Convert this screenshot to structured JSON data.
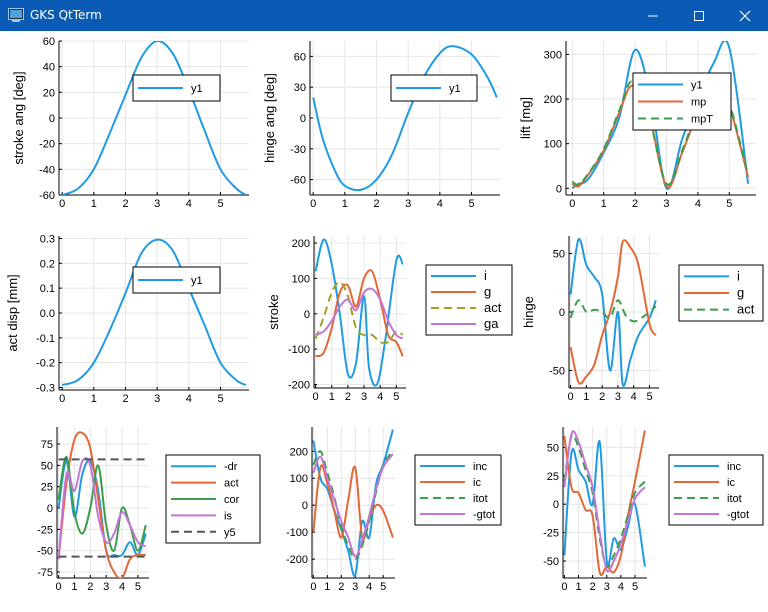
{
  "window": {
    "title": "GKS QtTerm"
  },
  "chart_data": [
    {
      "type": "line",
      "id": "stroke",
      "ylabel": "stroke ang [deg]",
      "xlim": [
        -0.1,
        5.9
      ],
      "ylim": [
        -60,
        60
      ],
      "xticks": [
        0,
        1,
        2,
        3,
        4,
        5
      ],
      "yticks": [
        -60,
        -40,
        -20,
        0,
        20,
        40,
        60
      ],
      "legend": {
        "placement": "inside-top-right"
      },
      "series": [
        {
          "name": "y1",
          "color": "#1f9be3",
          "dash": "solid",
          "x": [
            0,
            0.5,
            1,
            1.5,
            2,
            2.5,
            3,
            3.5,
            4,
            4.5,
            5,
            5.5,
            5.8
          ],
          "y": [
            -60,
            -55,
            -40,
            -12,
            18,
            47,
            60,
            50,
            22,
            -10,
            -40,
            -55,
            -60
          ]
        }
      ]
    },
    {
      "type": "line",
      "id": "hinge",
      "ylabel": "hinge ang [deg]",
      "xlim": [
        -0.1,
        5.9
      ],
      "ylim": [
        -75,
        75
      ],
      "xticks": [
        0,
        1,
        2,
        3,
        4,
        5
      ],
      "yticks": [
        -60,
        -30,
        0,
        30,
        60
      ],
      "legend": {
        "placement": "inside-top-right"
      },
      "series": [
        {
          "name": "y1",
          "color": "#1f9be3",
          "dash": "solid",
          "x": [
            0,
            0.3,
            0.7,
            1,
            1.5,
            2,
            2.5,
            3,
            3.5,
            4,
            4.4,
            5,
            5.5,
            5.8
          ],
          "y": [
            20,
            -20,
            -52,
            -66,
            -70,
            -60,
            -35,
            5,
            40,
            63,
            70,
            62,
            40,
            20
          ]
        }
      ]
    },
    {
      "type": "line",
      "id": "lift",
      "ylabel": "lift [mg]",
      "xlim": [
        -0.2,
        5.85
      ],
      "ylim": [
        -15,
        330
      ],
      "xticks": [
        0,
        1,
        2,
        3,
        4,
        5
      ],
      "yticks": [
        0,
        100,
        200,
        300
      ],
      "legend": {
        "placement": "inside-top-right"
      },
      "series": [
        {
          "name": "y1",
          "color": "#1f9be3",
          "dash": "solid",
          "x": [
            0,
            0.2,
            0.5,
            1,
            1.5,
            2,
            2.5,
            3,
            3.5,
            4,
            4.5,
            5,
            5.6
          ],
          "y": [
            0,
            10,
            20,
            80,
            160,
            310,
            200,
            0,
            110,
            200,
            280,
            315,
            10
          ]
        },
        {
          "name": "mp",
          "color": "#e26838",
          "dash": "solid",
          "x": [
            0,
            0.2,
            0.5,
            1,
            1.5,
            1.9,
            2.4,
            3,
            3.5,
            4,
            4.5,
            4.9,
            5.6
          ],
          "y": [
            10,
            5,
            30,
            85,
            170,
            230,
            180,
            5,
            80,
            170,
            230,
            210,
            25
          ]
        },
        {
          "name": "mpT",
          "color": "#3a9e4a",
          "dash": "dash",
          "x": [
            0,
            0.2,
            0.5,
            1,
            1.5,
            1.9,
            2.4,
            3,
            3.5,
            4,
            4.5,
            4.9,
            5.6
          ],
          "y": [
            15,
            8,
            32,
            88,
            175,
            240,
            175,
            10,
            85,
            175,
            235,
            215,
            30
          ]
        }
      ]
    },
    {
      "type": "line",
      "id": "actdisp",
      "ylabel": "act disp [mm]",
      "xlim": [
        -0.1,
        5.9
      ],
      "ylim": [
        -0.31,
        0.31
      ],
      "xticks": [
        0,
        1,
        2,
        3,
        4,
        5
      ],
      "yticks": [
        -0.3,
        -0.2,
        -0.1,
        0.0,
        0.1,
        0.2,
        0.3
      ],
      "legend": {
        "placement": "inside-top-right"
      },
      "series": [
        {
          "name": "y1",
          "color": "#1f9be3",
          "dash": "solid",
          "x": [
            0,
            0.5,
            1,
            1.5,
            2,
            2.5,
            3,
            3.5,
            4,
            4.5,
            5,
            5.5,
            5.8
          ],
          "y": [
            -0.29,
            -0.27,
            -0.2,
            -0.07,
            0.08,
            0.24,
            0.295,
            0.25,
            0.1,
            -0.05,
            -0.2,
            -0.27,
            -0.29
          ]
        }
      ]
    },
    {
      "type": "line",
      "id": "stroke2",
      "ylabel": "stroke",
      "xlim": [
        -0.1,
        5.6
      ],
      "ylim": [
        -210,
        220
      ],
      "xticks": [
        0,
        1,
        2,
        3,
        4,
        5
      ],
      "yticks": [
        -200,
        -100,
        0,
        100,
        200
      ],
      "legend": {
        "placement": "outside-right"
      },
      "series": [
        {
          "name": "i",
          "color": "#1f9be3",
          "dash": "solid",
          "x": [
            0,
            0.5,
            1,
            1.5,
            2,
            2.5,
            3,
            3.3,
            3.8,
            4.3,
            5,
            5.4
          ],
          "y": [
            120,
            210,
            140,
            0,
            -170,
            -140,
            50,
            -150,
            -200,
            -80,
            150,
            140
          ]
        },
        {
          "name": "g",
          "color": "#e26838",
          "dash": "solid",
          "x": [
            0,
            0.5,
            1,
            1.5,
            2,
            2.5,
            3,
            3.5,
            4,
            4.5,
            5,
            5.4
          ],
          "y": [
            -120,
            -110,
            -40,
            60,
            80,
            20,
            100,
            120,
            40,
            -60,
            -80,
            -120
          ]
        },
        {
          "name": "act",
          "color": "#a3a020",
          "dash": "dash",
          "x": [
            0,
            0.5,
            1,
            1.5,
            2,
            2.5,
            3,
            3.5,
            4,
            4.5,
            5,
            5.4
          ],
          "y": [
            -70,
            -10,
            60,
            90,
            50,
            -40,
            -60,
            -60,
            -80,
            -80,
            -50,
            -60
          ]
        },
        {
          "name": "ga",
          "color": "#c476d6",
          "dash": "solid",
          "x": [
            0,
            0.5,
            1,
            1.5,
            2,
            2.5,
            3,
            3.5,
            4,
            4.5,
            5,
            5.4
          ],
          "y": [
            -60,
            -50,
            -20,
            20,
            40,
            10,
            60,
            70,
            40,
            -20,
            -60,
            -70
          ]
        }
      ]
    },
    {
      "type": "line",
      "id": "hinge2",
      "ylabel": "hinge",
      "xlim": [
        -0.1,
        5.6
      ],
      "ylim": [
        -65,
        65
      ],
      "xticks": [
        0,
        1,
        2,
        3,
        4,
        5
      ],
      "yticks": [
        -50,
        0,
        50
      ],
      "legend": {
        "placement": "outside-right"
      },
      "series": [
        {
          "name": "i",
          "color": "#1f9be3",
          "dash": "solid",
          "x": [
            0,
            0.5,
            1,
            1.5,
            2,
            2.5,
            3,
            3.3,
            3.8,
            4.3,
            5,
            5.4
          ],
          "y": [
            15,
            62,
            40,
            30,
            15,
            -50,
            0,
            -62,
            -40,
            -20,
            -5,
            10
          ]
        },
        {
          "name": "g",
          "color": "#e26838",
          "dash": "solid",
          "x": [
            0,
            0.5,
            1,
            1.5,
            2,
            2.5,
            3,
            3.3,
            3.8,
            4.3,
            5,
            5.4
          ],
          "y": [
            -30,
            -60,
            -55,
            -45,
            -20,
            0,
            30,
            60,
            55,
            40,
            -10,
            -20
          ]
        },
        {
          "name": "act",
          "color": "#3a9e4a",
          "dash": "dash",
          "x": [
            0,
            0.5,
            1,
            1.5,
            2,
            2.5,
            3,
            3.5,
            4,
            4.5,
            5,
            5.4
          ],
          "y": [
            -5,
            10,
            0,
            2,
            0,
            -5,
            10,
            -3,
            -8,
            -5,
            0,
            5
          ]
        }
      ]
    },
    {
      "type": "line",
      "id": "forces",
      "xlim": [
        -0.1,
        5.7
      ],
      "ylim": [
        -82,
        95
      ],
      "xticks": [
        0,
        1,
        2,
        3,
        4,
        5
      ],
      "yticks": [
        -75,
        -50,
        -25,
        0,
        25,
        50,
        75
      ],
      "legend": {
        "placement": "outside-right"
      },
      "series": [
        {
          "name": "-dr",
          "color": "#1f9be3",
          "dash": "solid",
          "x": [
            0,
            0.5,
            1,
            1.5,
            2,
            2.5,
            3,
            3.5,
            4,
            4.5,
            5,
            5.5
          ],
          "y": [
            0,
            55,
            -10,
            40,
            55,
            20,
            -50,
            -55,
            -55,
            -40,
            -55,
            -30
          ]
        },
        {
          "name": "act",
          "color": "#e26838",
          "dash": "solid",
          "x": [
            0,
            0.5,
            1,
            1.5,
            2,
            2.5,
            3,
            3.5,
            4,
            4.5,
            5,
            5.5
          ],
          "y": [
            -60,
            30,
            80,
            88,
            70,
            10,
            -50,
            -75,
            -82,
            -60,
            -55,
            -55
          ]
        },
        {
          "name": "cor",
          "color": "#3a9e4a",
          "dash": "solid",
          "x": [
            0,
            0.5,
            1,
            1.5,
            2,
            2.5,
            3,
            3.5,
            4,
            4.5,
            5,
            5.5
          ],
          "y": [
            10,
            60,
            -5,
            -30,
            0,
            50,
            -20,
            -50,
            0,
            -20,
            -50,
            -20
          ]
        },
        {
          "name": "is",
          "color": "#c476d6",
          "dash": "solid",
          "x": [
            0,
            0.5,
            1,
            1.5,
            2,
            2.5,
            3,
            3.5,
            4,
            4.5,
            5,
            5.5
          ],
          "y": [
            -60,
            40,
            20,
            55,
            50,
            -10,
            -40,
            -30,
            -5,
            -20,
            -40,
            -45
          ]
        },
        {
          "name": "y5",
          "color": "#555555",
          "dash": "dash",
          "x": [
            0,
            5.7
          ],
          "y": [
            57,
            57
          ]
        },
        {
          "name": "",
          "color": "#555555",
          "dash": "dash",
          "x": [
            0,
            5.7
          ],
          "y": [
            -57,
            -57
          ]
        }
      ]
    },
    {
      "type": "line",
      "id": "totals",
      "xlim": [
        -0.1,
        5.85
      ],
      "ylim": [
        -270,
        290
      ],
      "xticks": [
        0,
        1,
        2,
        3,
        4,
        5
      ],
      "yticks": [
        -200,
        -100,
        0,
        100,
        200
      ],
      "legend": {
        "placement": "outside-right"
      },
      "series": [
        {
          "name": "inc",
          "color": "#1f9be3",
          "dash": "solid",
          "x": [
            0,
            0.5,
            1,
            1.5,
            2,
            2.5,
            3,
            3.5,
            4,
            4.5,
            5,
            5.7
          ],
          "y": [
            240,
            100,
            60,
            -20,
            -90,
            -170,
            -260,
            -60,
            -120,
            80,
            150,
            280
          ]
        },
        {
          "name": "ic",
          "color": "#e26838",
          "dash": "solid",
          "x": [
            0,
            0.5,
            1,
            1.5,
            2,
            2.5,
            3,
            3.5,
            4,
            4.5,
            5,
            5.7
          ],
          "y": [
            -100,
            140,
            80,
            -20,
            -120,
            20,
            140,
            -120,
            -50,
            0,
            -20,
            -120
          ]
        },
        {
          "name": "itot",
          "color": "#3a9e4a",
          "dash": "dash",
          "x": [
            0,
            0.5,
            1,
            1.5,
            2,
            2.5,
            3,
            3.5,
            4,
            4.5,
            5,
            5.7
          ],
          "y": [
            150,
            200,
            120,
            30,
            -80,
            -150,
            -200,
            -150,
            -60,
            50,
            150,
            200
          ]
        },
        {
          "name": "-gtot",
          "color": "#c476d6",
          "dash": "solid",
          "x": [
            0,
            0.5,
            1,
            1.5,
            2,
            2.5,
            3,
            3.5,
            4,
            4.5,
            5,
            5.7
          ],
          "y": [
            120,
            180,
            100,
            20,
            -60,
            -120,
            -190,
            -130,
            -40,
            60,
            140,
            190
          ]
        }
      ]
    },
    {
      "type": "line",
      "id": "totals2",
      "xlim": [
        -0.1,
        5.85
      ],
      "ylim": [
        -65,
        68
      ],
      "xticks": [
        0,
        1,
        2,
        3,
        4,
        5
      ],
      "yticks": [
        -50,
        -25,
        0,
        25,
        50
      ],
      "legend": {
        "placement": "outside-right"
      },
      "series": [
        {
          "name": "inc",
          "color": "#1f9be3",
          "dash": "solid",
          "x": [
            0,
            0.5,
            1,
            1.5,
            2,
            2.5,
            3,
            3.5,
            4,
            4.5,
            5,
            5.7
          ],
          "y": [
            -45,
            45,
            30,
            20,
            0,
            55,
            -50,
            -30,
            -40,
            -20,
            0,
            -55
          ]
        },
        {
          "name": "ic",
          "color": "#e26838",
          "dash": "solid",
          "x": [
            0,
            0.5,
            1,
            1.5,
            2,
            2.5,
            3,
            3.5,
            4,
            4.5,
            5,
            5.7
          ],
          "y": [
            60,
            15,
            10,
            -5,
            -10,
            -60,
            -55,
            -60,
            -45,
            -10,
            20,
            65
          ]
        },
        {
          "name": "itot",
          "color": "#3a9e4a",
          "dash": "dash",
          "x": [
            0,
            0.5,
            1,
            1.5,
            2,
            2.5,
            3,
            3.5,
            4,
            4.5,
            5,
            5.7
          ],
          "y": [
            20,
            60,
            50,
            30,
            10,
            -30,
            -55,
            -45,
            -30,
            -10,
            10,
            20
          ]
        },
        {
          "name": "-gtot",
          "color": "#c476d6",
          "dash": "solid",
          "x": [
            0,
            0.5,
            1,
            1.5,
            2,
            2.5,
            3,
            3.5,
            4,
            4.5,
            5,
            5.7
          ],
          "y": [
            15,
            62,
            55,
            35,
            15,
            -25,
            -58,
            -50,
            -35,
            -15,
            5,
            15
          ]
        }
      ]
    }
  ]
}
